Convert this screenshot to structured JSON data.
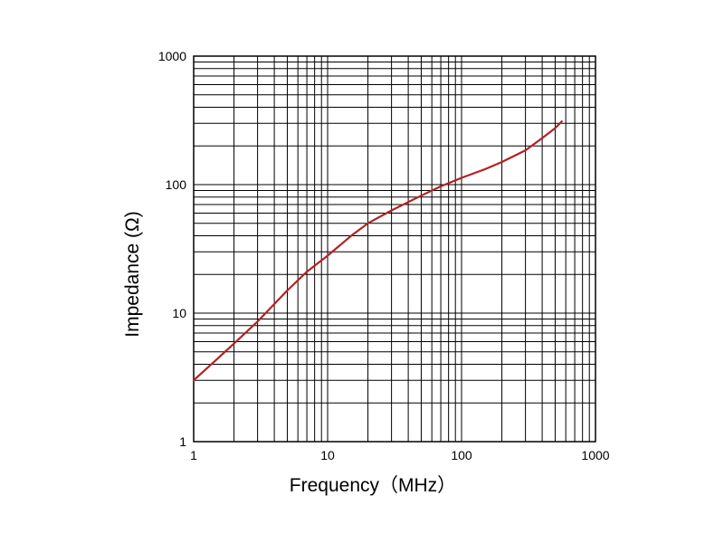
{
  "chart_data": {
    "type": "line",
    "title": "",
    "xlabel": "Frequency（MHz）",
    "ylabel": "Impedance (Ω)",
    "xscale": "log",
    "yscale": "log",
    "xlim": [
      1,
      1000
    ],
    "ylim": [
      1,
      1000
    ],
    "grid": true,
    "legend": "none",
    "x_tick_labels": [
      "1",
      "10",
      "100",
      "1000"
    ],
    "y_tick_labels": [
      "1",
      "10",
      "100",
      "1000"
    ],
    "series": [
      {
        "color": "#b22222",
        "points": [
          {
            "x": 1,
            "y": 3.0
          },
          {
            "x": 1.5,
            "y": 4.4
          },
          {
            "x": 2,
            "y": 5.8
          },
          {
            "x": 3,
            "y": 8.6
          },
          {
            "x": 5,
            "y": 15
          },
          {
            "x": 7,
            "y": 21
          },
          {
            "x": 10,
            "y": 28
          },
          {
            "x": 15,
            "y": 40
          },
          {
            "x": 20,
            "y": 50
          },
          {
            "x": 30,
            "y": 63
          },
          {
            "x": 50,
            "y": 82
          },
          {
            "x": 70,
            "y": 97
          },
          {
            "x": 100,
            "y": 113
          },
          {
            "x": 150,
            "y": 132
          },
          {
            "x": 200,
            "y": 150
          },
          {
            "x": 300,
            "y": 185
          },
          {
            "x": 400,
            "y": 230
          },
          {
            "x": 500,
            "y": 275
          },
          {
            "x": 560,
            "y": 310
          }
        ]
      }
    ]
  }
}
